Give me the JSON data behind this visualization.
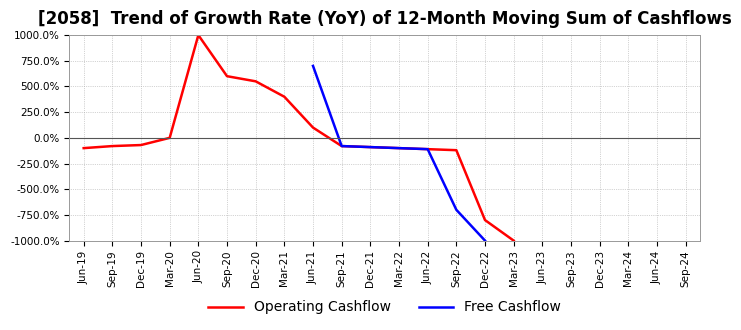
{
  "title": "[2058]  Trend of Growth Rate (YoY) of 12-Month Moving Sum of Cashflows",
  "ylim": [
    -1000,
    1000
  ],
  "yticks": [
    -1000,
    -750,
    -500,
    -250,
    0,
    250,
    500,
    750,
    1000
  ],
  "operating_cashflow": {
    "label": "Operating Cashflow",
    "color": "red",
    "x": [
      "Jun-19",
      "Sep-19",
      "Dec-19",
      "Mar-20",
      "Jun-20",
      "Sep-20",
      "Dec-20",
      "Mar-21",
      "Jun-21",
      "Sep-21",
      "Dec-21",
      "Mar-22",
      "Jun-22",
      "Sep-22",
      "Dec-22",
      "Mar-23"
    ],
    "y": [
      -100,
      -80,
      -70,
      0,
      1000,
      600,
      550,
      400,
      100,
      -80,
      -90,
      -100,
      -110,
      -120,
      -800,
      -1000
    ]
  },
  "free_cashflow": {
    "label": "Free Cashflow",
    "color": "blue",
    "x": [
      "Jun-21",
      "Sep-21",
      "Dec-21",
      "Mar-22",
      "Jun-22",
      "Sep-22",
      "Dec-22"
    ],
    "y": [
      700,
      -80,
      -90,
      -100,
      -110,
      -700,
      -1000
    ]
  },
  "x_all": [
    "Jun-19",
    "Sep-19",
    "Dec-19",
    "Mar-20",
    "Jun-20",
    "Sep-20",
    "Dec-20",
    "Mar-21",
    "Jun-21",
    "Sep-21",
    "Dec-21",
    "Mar-22",
    "Jun-22",
    "Sep-22",
    "Dec-22",
    "Mar-23",
    "Jun-23",
    "Sep-23",
    "Dec-23",
    "Mar-24",
    "Jun-24",
    "Sep-24"
  ],
  "background_color": "#ffffff",
  "grid_color": "#aaaaaa",
  "grid_style": "dotted",
  "title_fontsize": 12,
  "legend_fontsize": 10,
  "zero_line_color": "#555555"
}
